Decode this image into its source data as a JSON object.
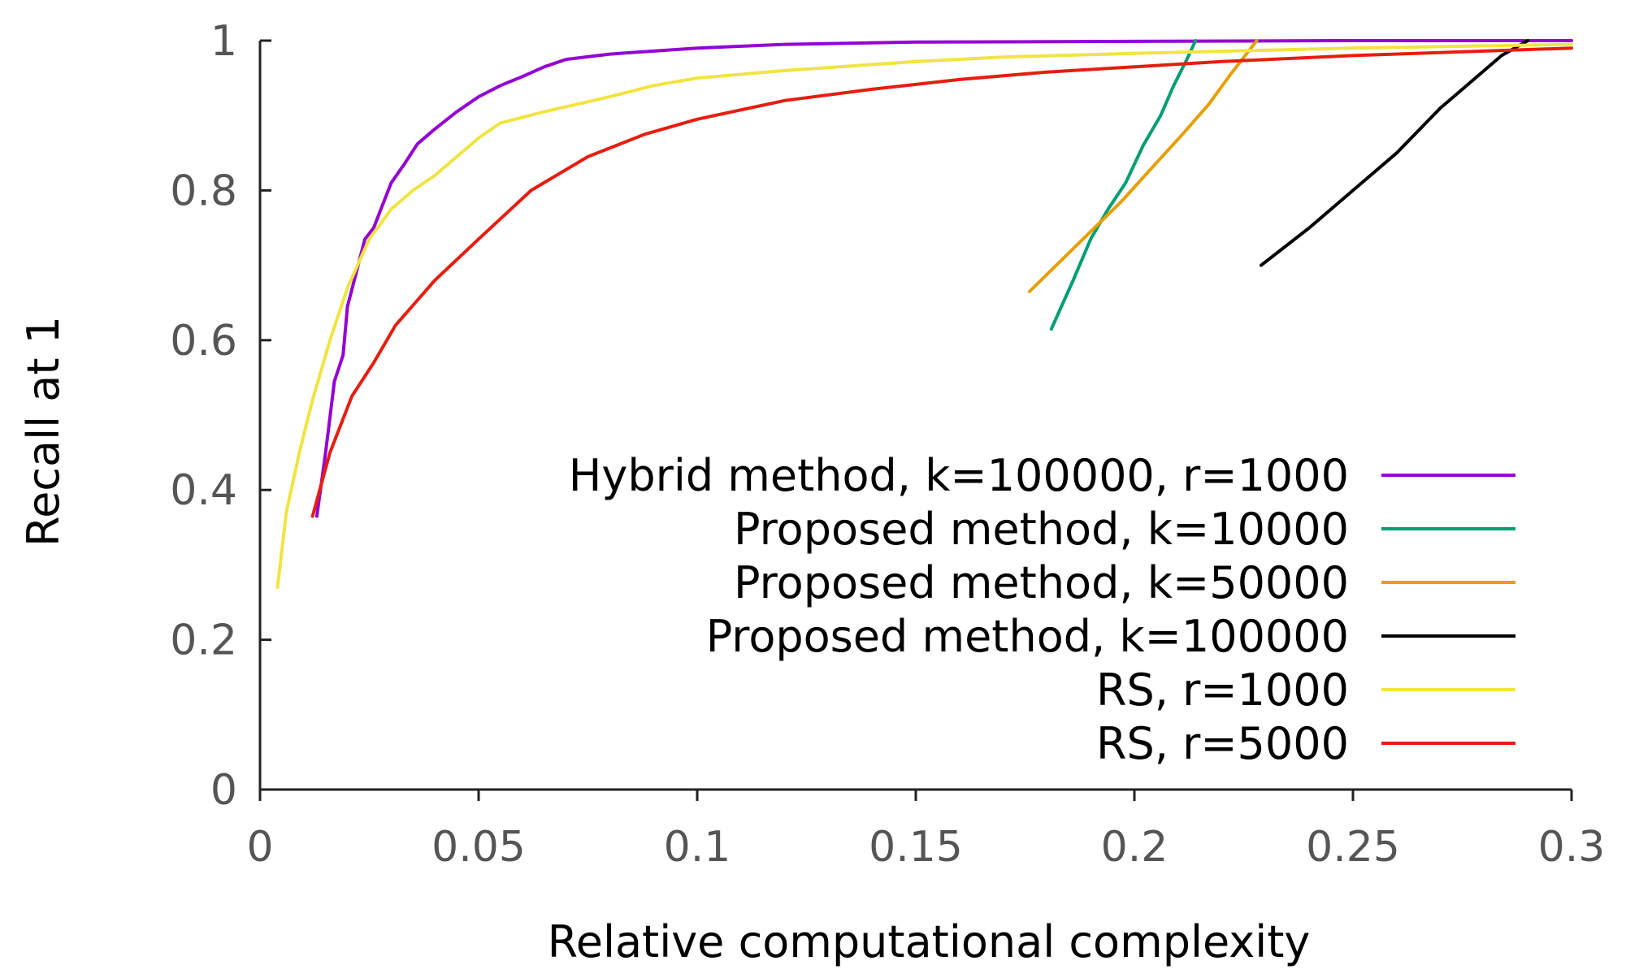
{
  "chart_data": {
    "type": "line",
    "title": "",
    "xlabel": "Relative computational complexity",
    "ylabel": "Recall at 1",
    "xlim": [
      0,
      0.3
    ],
    "ylim": [
      0,
      1
    ],
    "x_ticks": [
      "0",
      "0.05",
      "0.1",
      "0.15",
      "0.2",
      "0.25",
      "0.3"
    ],
    "x_tick_values": [
      0,
      0.05,
      0.1,
      0.15,
      0.2,
      0.25,
      0.3
    ],
    "y_ticks": [
      "0",
      "0.2",
      "0.4",
      "0.6",
      "0.8",
      "1"
    ],
    "y_tick_values": [
      0,
      0.2,
      0.4,
      0.6,
      0.8,
      1
    ],
    "grid": false,
    "legend_position": "center-right",
    "series": [
      {
        "name": "Hybrid method, k=100000, r=1000",
        "color": "#9400d3",
        "points": [
          [
            0.013,
            0.365
          ],
          [
            0.015,
            0.45
          ],
          [
            0.017,
            0.545
          ],
          [
            0.019,
            0.58
          ],
          [
            0.02,
            0.645
          ],
          [
            0.022,
            0.69
          ],
          [
            0.024,
            0.735
          ],
          [
            0.026,
            0.75
          ],
          [
            0.028,
            0.78
          ],
          [
            0.03,
            0.81
          ],
          [
            0.033,
            0.835
          ],
          [
            0.036,
            0.862
          ],
          [
            0.04,
            0.882
          ],
          [
            0.045,
            0.905
          ],
          [
            0.05,
            0.925
          ],
          [
            0.055,
            0.94
          ],
          [
            0.06,
            0.952
          ],
          [
            0.065,
            0.965
          ],
          [
            0.07,
            0.975
          ],
          [
            0.08,
            0.982
          ],
          [
            0.09,
            0.986
          ],
          [
            0.1,
            0.99
          ],
          [
            0.12,
            0.995
          ],
          [
            0.15,
            0.998
          ],
          [
            0.2,
            0.999
          ],
          [
            0.25,
            1.0
          ],
          [
            0.3,
            1.0
          ]
        ]
      },
      {
        "name": "Proposed method, k=10000",
        "color": "#009e73",
        "points": [
          [
            0.181,
            0.615
          ],
          [
            0.186,
            0.68
          ],
          [
            0.19,
            0.735
          ],
          [
            0.194,
            0.775
          ],
          [
            0.198,
            0.81
          ],
          [
            0.202,
            0.86
          ],
          [
            0.206,
            0.9
          ],
          [
            0.209,
            0.94
          ],
          [
            0.212,
            0.975
          ],
          [
            0.214,
            1.0
          ]
        ]
      },
      {
        "name": "Proposed method, k=50000",
        "color": "#e69f00",
        "points": [
          [
            0.176,
            0.665
          ],
          [
            0.183,
            0.705
          ],
          [
            0.19,
            0.745
          ],
          [
            0.197,
            0.785
          ],
          [
            0.204,
            0.83
          ],
          [
            0.211,
            0.875
          ],
          [
            0.217,
            0.915
          ],
          [
            0.222,
            0.955
          ],
          [
            0.226,
            0.985
          ],
          [
            0.228,
            1.0
          ]
        ]
      },
      {
        "name": "Proposed method, k=100000",
        "color": "#000000",
        "points": [
          [
            0.229,
            0.7
          ],
          [
            0.24,
            0.75
          ],
          [
            0.25,
            0.8
          ],
          [
            0.26,
            0.85
          ],
          [
            0.27,
            0.91
          ],
          [
            0.278,
            0.95
          ],
          [
            0.284,
            0.98
          ],
          [
            0.29,
            1.0
          ]
        ]
      },
      {
        "name": "RS, r=1000",
        "color": "#f0e442",
        "points": [
          [
            0.004,
            0.27
          ],
          [
            0.006,
            0.37
          ],
          [
            0.009,
            0.45
          ],
          [
            0.012,
            0.52
          ],
          [
            0.016,
            0.6
          ],
          [
            0.02,
            0.67
          ],
          [
            0.025,
            0.735
          ],
          [
            0.03,
            0.775
          ],
          [
            0.035,
            0.8
          ],
          [
            0.04,
            0.82
          ],
          [
            0.045,
            0.845
          ],
          [
            0.05,
            0.87
          ],
          [
            0.055,
            0.89
          ],
          [
            0.065,
            0.905
          ],
          [
            0.08,
            0.925
          ],
          [
            0.09,
            0.94
          ],
          [
            0.1,
            0.95
          ],
          [
            0.12,
            0.96
          ],
          [
            0.15,
            0.972
          ],
          [
            0.17,
            0.978
          ],
          [
            0.2,
            0.983
          ],
          [
            0.25,
            0.99
          ],
          [
            0.3,
            0.995
          ]
        ]
      },
      {
        "name": "RS, r=5000",
        "color": "#e51e10",
        "points": [
          [
            0.012,
            0.365
          ],
          [
            0.016,
            0.45
          ],
          [
            0.021,
            0.525
          ],
          [
            0.026,
            0.57
          ],
          [
            0.031,
            0.62
          ],
          [
            0.04,
            0.68
          ],
          [
            0.05,
            0.735
          ],
          [
            0.062,
            0.8
          ],
          [
            0.075,
            0.845
          ],
          [
            0.088,
            0.875
          ],
          [
            0.1,
            0.895
          ],
          [
            0.12,
            0.92
          ],
          [
            0.14,
            0.935
          ],
          [
            0.16,
            0.948
          ],
          [
            0.18,
            0.958
          ],
          [
            0.2,
            0.965
          ],
          [
            0.22,
            0.972
          ],
          [
            0.25,
            0.98
          ],
          [
            0.3,
            0.99
          ]
        ]
      }
    ]
  }
}
